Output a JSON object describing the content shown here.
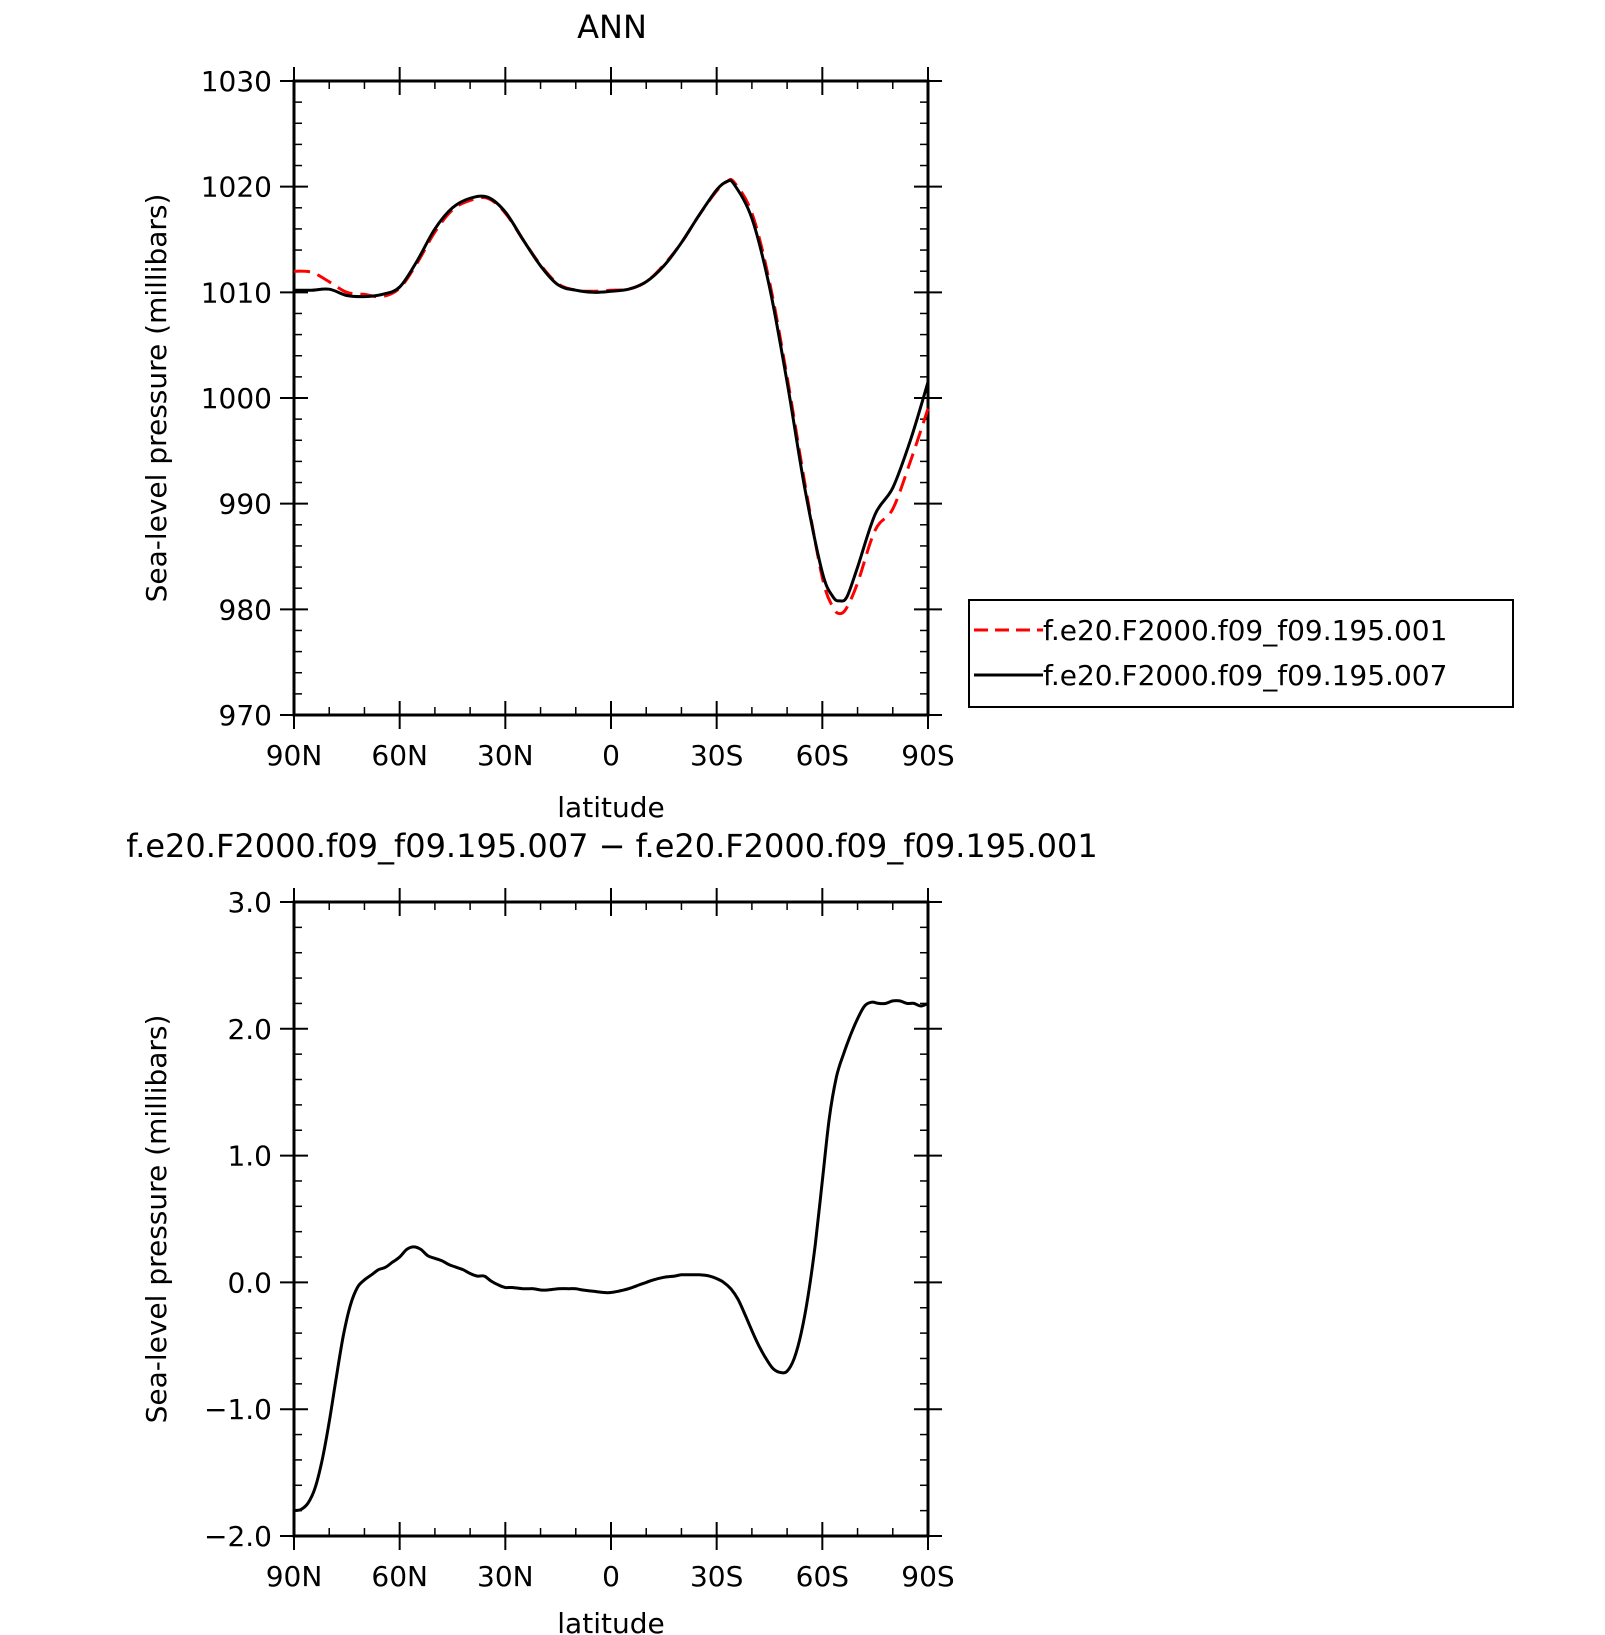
{
  "chart_data": [
    {
      "type": "line",
      "title": "ANN",
      "xlabel": "latitude",
      "ylabel": "Sea-level pressure (millibars)",
      "xlim": [
        90,
        -90
      ],
      "ylim": [
        970,
        1030
      ],
      "x_ticks": [
        {
          "value": 90,
          "label": "90N"
        },
        {
          "value": 60,
          "label": "60N"
        },
        {
          "value": 30,
          "label": "30N"
        },
        {
          "value": 0,
          "label": "0"
        },
        {
          "value": -30,
          "label": "30S"
        },
        {
          "value": -60,
          "label": "60S"
        },
        {
          "value": -90,
          "label": "90S"
        }
      ],
      "y_ticks": [
        970,
        980,
        990,
        1000,
        1010,
        1020,
        1030
      ],
      "y_tick_labels": [
        "970",
        "980",
        "990",
        "1000",
        "1010",
        "1020",
        "1030"
      ],
      "legend_position": "right",
      "series": [
        {
          "name": "f.e20.F2000.f09_f09.195.001",
          "color": "#ff0000",
          "dash": "dashed",
          "x": [
            90,
            85,
            80,
            75,
            70,
            65,
            60,
            55,
            50,
            45,
            40,
            35,
            30,
            25,
            20,
            15,
            10,
            5,
            0,
            -5,
            -10,
            -15,
            -20,
            -25,
            -30,
            -33,
            -35,
            -40,
            -45,
            -50,
            -55,
            -60,
            -63,
            -65,
            -67,
            -70,
            -75,
            -80,
            -85,
            -90
          ],
          "values": [
            1012.0,
            1011.9,
            1011.0,
            1010.0,
            1009.8,
            1009.6,
            1010.4,
            1012.8,
            1015.7,
            1017.8,
            1018.7,
            1018.9,
            1017.5,
            1015.0,
            1012.6,
            1010.8,
            1010.2,
            1010.1,
            1010.2,
            1010.3,
            1011.0,
            1012.6,
            1014.7,
            1017.3,
            1019.6,
            1020.5,
            1020.4,
            1017.5,
            1011.0,
            1002.0,
            992.0,
            983.0,
            980.2,
            979.6,
            980.2,
            982.5,
            987.5,
            989.5,
            994.0,
            999.0
          ]
        },
        {
          "name": "f.e20.F2000.f09_f09.195.007",
          "color": "#000000",
          "dash": "solid",
          "x": [
            90,
            85,
            80,
            75,
            70,
            65,
            60,
            55,
            50,
            45,
            40,
            35,
            30,
            25,
            20,
            15,
            10,
            5,
            0,
            -5,
            -10,
            -15,
            -20,
            -25,
            -30,
            -33,
            -35,
            -40,
            -45,
            -50,
            -55,
            -60,
            -63,
            -65,
            -67,
            -70,
            -75,
            -80,
            -85,
            -90
          ],
          "values": [
            1010.2,
            1010.2,
            1010.3,
            1009.7,
            1009.6,
            1009.8,
            1010.5,
            1013.0,
            1016.0,
            1018.0,
            1018.9,
            1019.0,
            1017.6,
            1015.0,
            1012.5,
            1010.7,
            1010.2,
            1010.0,
            1010.1,
            1010.3,
            1011.0,
            1012.5,
            1014.7,
            1017.3,
            1019.7,
            1020.5,
            1020.2,
            1017.0,
            1010.5,
            1001.5,
            991.5,
            983.5,
            981.2,
            980.8,
            981.2,
            984.0,
            989.0,
            991.5,
            996.0,
            1001.5
          ]
        }
      ]
    },
    {
      "type": "line",
      "title": "f.e20.F2000.f09_f09.195.007 − f.e20.F2000.f09_f09.195.001",
      "xlabel": "latitude",
      "ylabel": "Sea-level pressure (millibars)",
      "xlim": [
        90,
        -90
      ],
      "ylim": [
        -2.0,
        3.0
      ],
      "x_ticks": [
        {
          "value": 90,
          "label": "90N"
        },
        {
          "value": 60,
          "label": "60N"
        },
        {
          "value": 30,
          "label": "30N"
        },
        {
          "value": 0,
          "label": "0"
        },
        {
          "value": -30,
          "label": "30S"
        },
        {
          "value": -60,
          "label": "60S"
        },
        {
          "value": -90,
          "label": "90S"
        }
      ],
      "y_ticks": [
        -2.0,
        -1.0,
        0.0,
        1.0,
        2.0,
        3.0
      ],
      "y_tick_labels": [
        "−2.0",
        "−1.0",
        "0.0",
        "1.0",
        "2.0",
        "3.0"
      ],
      "series": [
        {
          "name": "",
          "color": "#000000",
          "dash": "solid",
          "x": [
            90,
            88,
            86,
            84,
            82,
            80,
            78,
            76,
            74,
            72,
            70,
            68,
            66,
            64,
            62,
            60,
            58,
            56,
            54,
            52,
            50,
            48,
            46,
            44,
            42,
            40,
            38,
            36,
            34,
            32,
            30,
            28,
            25,
            22,
            20,
            18,
            15,
            12,
            10,
            8,
            5,
            2,
            0,
            -2,
            -5,
            -8,
            -10,
            -12,
            -15,
            -18,
            -20,
            -22,
            -25,
            -28,
            -30,
            -32,
            -34,
            -36,
            -38,
            -40,
            -42,
            -44,
            -46,
            -48,
            -50,
            -52,
            -54,
            -56,
            -58,
            -60,
            -62,
            -64,
            -66,
            -68,
            -70,
            -72,
            -74,
            -76,
            -78,
            -80,
            -82,
            -84,
            -86,
            -88,
            -90
          ],
          "values": [
            -1.8,
            -1.79,
            -1.74,
            -1.62,
            -1.4,
            -1.1,
            -0.75,
            -0.42,
            -0.18,
            -0.04,
            0.02,
            0.06,
            0.1,
            0.12,
            0.16,
            0.2,
            0.26,
            0.28,
            0.26,
            0.21,
            0.19,
            0.17,
            0.14,
            0.12,
            0.1,
            0.07,
            0.05,
            0.05,
            0.01,
            -0.02,
            -0.04,
            -0.04,
            -0.05,
            -0.05,
            -0.06,
            -0.06,
            -0.05,
            -0.05,
            -0.05,
            -0.06,
            -0.07,
            -0.08,
            -0.08,
            -0.07,
            -0.05,
            -0.02,
            0.0,
            0.02,
            0.04,
            0.05,
            0.06,
            0.06,
            0.06,
            0.05,
            0.03,
            0.0,
            -0.05,
            -0.13,
            -0.25,
            -0.38,
            -0.5,
            -0.6,
            -0.68,
            -0.71,
            -0.7,
            -0.6,
            -0.4,
            -0.1,
            0.3,
            0.8,
            1.3,
            1.62,
            1.8,
            1.95,
            2.08,
            2.18,
            2.21,
            2.2,
            2.2,
            2.22,
            2.22,
            2.2,
            2.2,
            2.18,
            2.2
          ]
        }
      ]
    }
  ]
}
